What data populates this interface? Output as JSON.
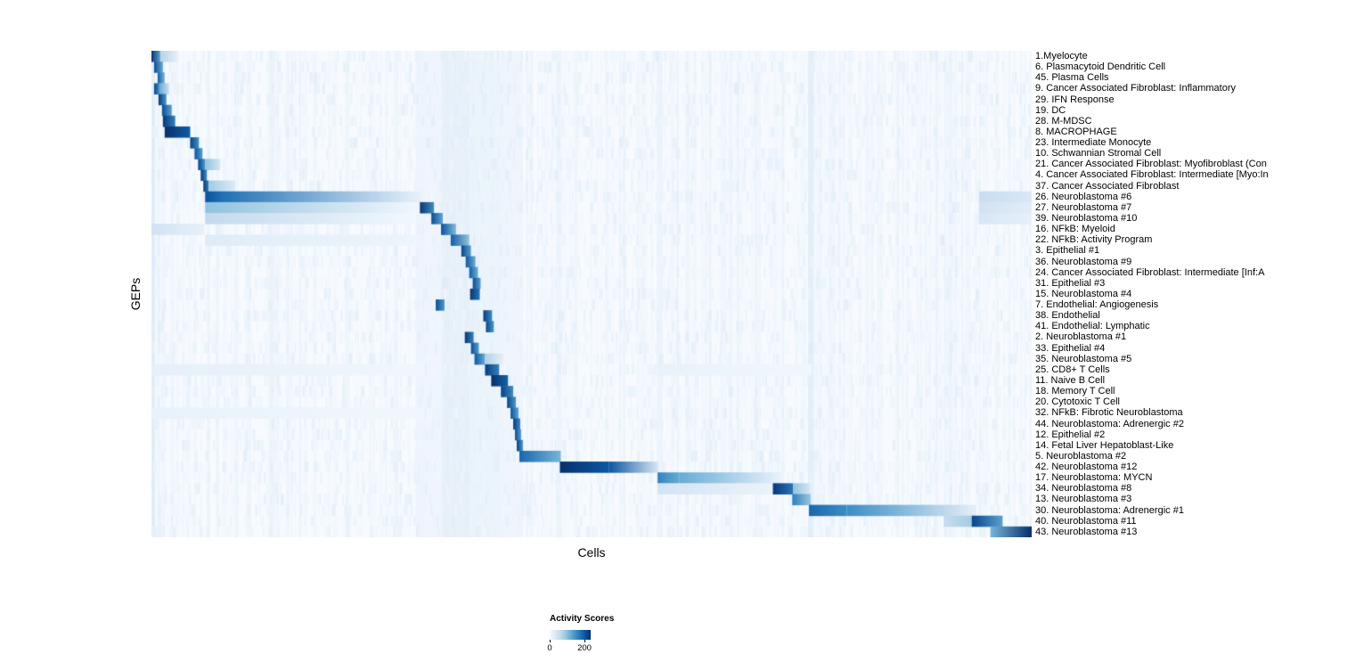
{
  "chart_data": {
    "type": "heatmap",
    "xlabel": "Cells",
    "ylabel": "GEPs",
    "legend": {
      "title": "Activity Scores",
      "tick_min": "0",
      "tick_max": "200"
    },
    "score_max": 235,
    "colors": {
      "background": "#ffffff",
      "scale_stops": [
        "#f7fbff",
        "#deebf7",
        "#c6dbef",
        "#9ecae1",
        "#6baed6",
        "#4292c6",
        "#2171b5",
        "#08519c",
        "#08306b"
      ]
    },
    "rows": [
      {
        "label": "1.Myelocyte",
        "blocks": [
          [
            0.0,
            0.01,
            230,
            130
          ],
          [
            0.01,
            0.03,
            70,
            20
          ]
        ]
      },
      {
        "label": "6. Plasmacytoid Dendritic Cell",
        "blocks": [
          [
            0.003,
            0.013,
            210,
            120
          ]
        ]
      },
      {
        "label": "45. Plasma Cells",
        "blocks": [
          [
            0.007,
            0.015,
            195,
            110
          ]
        ]
      },
      {
        "label": "9. Cancer Associated Fibroblast: Inflammatory",
        "blocks": [
          [
            0.003,
            0.009,
            215,
            150
          ],
          [
            0.009,
            0.02,
            120,
            50
          ]
        ]
      },
      {
        "label": "29. IFN Response",
        "blocks": [
          [
            0.008,
            0.017,
            225,
            140
          ]
        ]
      },
      {
        "label": "19. DC",
        "blocks": [
          [
            0.012,
            0.023,
            210,
            130
          ]
        ]
      },
      {
        "label": "28. M-MDSC",
        "blocks": [
          [
            0.013,
            0.027,
            230,
            160
          ]
        ]
      },
      {
        "label": "8. MACROPHAGE",
        "blocks": [
          [
            0.015,
            0.044,
            235,
            195
          ]
        ]
      },
      {
        "label": "23. Intermediate Monocyte",
        "blocks": [
          [
            0.044,
            0.054,
            220,
            145
          ]
        ]
      },
      {
        "label": "10. Schwannian Stromal Cell",
        "blocks": [
          [
            0.049,
            0.058,
            205,
            130
          ]
        ]
      },
      {
        "label": "21. Cancer Associated Fibroblast: Myofibroblast (Con",
        "blocks": [
          [
            0.053,
            0.061,
            215,
            140
          ],
          [
            0.061,
            0.078,
            95,
            40
          ]
        ]
      },
      {
        "label": "4. Cancer Associated Fibroblast: Intermediate [Myo:In",
        "blocks": [
          [
            0.056,
            0.063,
            225,
            150
          ]
        ]
      },
      {
        "label": "37. Cancer Associated Fibroblast",
        "blocks": [
          [
            0.059,
            0.065,
            230,
            160
          ],
          [
            0.065,
            0.095,
            85,
            30
          ]
        ]
      },
      {
        "label": "26. Neuroblastoma #6",
        "blocks": [
          [
            0.061,
            0.082,
            205,
            175
          ],
          [
            0.082,
            0.31,
            175,
            12
          ],
          [
            0.94,
            1.0,
            55,
            35
          ]
        ]
      },
      {
        "label": "27. Neuroblastoma #7",
        "blocks": [
          [
            0.061,
            0.3,
            95,
            8
          ],
          [
            0.305,
            0.321,
            230,
            150
          ],
          [
            0.94,
            1.0,
            45,
            25
          ]
        ]
      },
      {
        "label": "39. Neuroblastoma #10",
        "blocks": [
          [
            0.061,
            0.3,
            60,
            6
          ],
          [
            0.318,
            0.331,
            210,
            125
          ],
          [
            0.94,
            1.0,
            38,
            20
          ]
        ]
      },
      {
        "label": "16. NFkB: Myeloid",
        "blocks": [
          [
            0.0,
            0.06,
            45,
            18
          ],
          [
            0.329,
            0.346,
            205,
            105
          ]
        ]
      },
      {
        "label": "22. NFkB: Activity Program",
        "blocks": [
          [
            0.061,
            0.3,
            28,
            10
          ],
          [
            0.34,
            0.361,
            195,
            95
          ]
        ]
      },
      {
        "label": "3. Epithelial #1",
        "blocks": [
          [
            0.352,
            0.363,
            215,
            130
          ]
        ]
      },
      {
        "label": "36. Neuroblastoma #9",
        "blocks": [
          [
            0.357,
            0.368,
            200,
            120
          ]
        ]
      },
      {
        "label": "24. Cancer Associated Fibroblast: Intermediate [Inf:A",
        "blocks": [
          [
            0.361,
            0.371,
            195,
            115
          ]
        ]
      },
      {
        "label": "31. Epithelial #3",
        "blocks": [
          [
            0.365,
            0.374,
            210,
            130
          ]
        ]
      },
      {
        "label": "15. Neuroblastoma #4",
        "blocks": [
          [
            0.362,
            0.373,
            230,
            170
          ]
        ]
      },
      {
        "label": "7. Endothelial: Angiogenesis",
        "blocks": [
          [
            0.323,
            0.333,
            210,
            135
          ]
        ]
      },
      {
        "label": "38. Endothelial",
        "blocks": [
          [
            0.377,
            0.387,
            225,
            150
          ]
        ]
      },
      {
        "label": "41. Endothelial: Lymphatic",
        "blocks": [
          [
            0.38,
            0.389,
            215,
            140
          ]
        ]
      },
      {
        "label": "2. Neuroblastoma #1",
        "blocks": [
          [
            0.356,
            0.366,
            230,
            160
          ]
        ]
      },
      {
        "label": "33. Epithelial #4",
        "blocks": [
          [
            0.363,
            0.372,
            210,
            130
          ]
        ]
      },
      {
        "label": "35. Neuroblastoma #5",
        "blocks": [
          [
            0.367,
            0.379,
            200,
            120
          ],
          [
            0.379,
            0.4,
            75,
            20
          ]
        ]
      },
      {
        "label": "25. CD8+ T Cells",
        "blocks": [
          [
            0.0,
            0.31,
            20,
            8
          ],
          [
            0.379,
            0.395,
            225,
            160
          ],
          [
            0.575,
            0.75,
            16,
            7
          ]
        ]
      },
      {
        "label": "11. Naive B Cell",
        "blocks": [
          [
            0.386,
            0.405,
            235,
            190
          ]
        ]
      },
      {
        "label": "18. Memory T Cell",
        "blocks": [
          [
            0.397,
            0.411,
            220,
            150
          ]
        ]
      },
      {
        "label": "20. Cytotoxic T Cell",
        "blocks": [
          [
            0.404,
            0.414,
            215,
            140
          ]
        ]
      },
      {
        "label": "32. NFkB: Fibrotic Neuroblastoma",
        "blocks": [
          [
            0.0,
            0.31,
            16,
            7
          ],
          [
            0.408,
            0.417,
            205,
            125
          ]
        ]
      },
      {
        "label": "44. Neuroblastoma: Adrenergic #2",
        "blocks": [
          [
            0.411,
            0.419,
            225,
            150
          ]
        ]
      },
      {
        "label": "12. Epithelial #2",
        "blocks": [
          [
            0.413,
            0.42,
            210,
            130
          ]
        ]
      },
      {
        "label": "14. Fetal Liver Hepatoblast-Like",
        "blocks": [
          [
            0.415,
            0.422,
            220,
            140
          ]
        ]
      },
      {
        "label": "5. Neuroblastoma #2",
        "blocks": [
          [
            0.418,
            0.465,
            185,
            110
          ]
        ]
      },
      {
        "label": "42. Neuroblastoma #12",
        "blocks": [
          [
            0.464,
            0.52,
            235,
            200
          ],
          [
            0.52,
            0.576,
            200,
            35
          ]
        ]
      },
      {
        "label": "17. Neuroblastoma: MYCN",
        "blocks": [
          [
            0.575,
            0.6,
            160,
            120
          ],
          [
            0.6,
            0.716,
            120,
            15
          ]
        ]
      },
      {
        "label": "34. Neuroblastoma #8",
        "blocks": [
          [
            0.575,
            0.706,
            42,
            14
          ],
          [
            0.706,
            0.729,
            230,
            170
          ],
          [
            0.729,
            0.748,
            95,
            40
          ]
        ]
      },
      {
        "label": "13. Neuroblastoma #3",
        "blocks": [
          [
            0.728,
            0.749,
            165,
            90
          ]
        ]
      },
      {
        "label": "30. Neuroblastoma: Adrenergic #1",
        "blocks": [
          [
            0.747,
            0.79,
            185,
            150
          ],
          [
            0.79,
            0.937,
            150,
            20
          ]
        ]
      },
      {
        "label": "40. Neuroblastoma #11",
        "blocks": [
          [
            0.9,
            0.933,
            55,
            85
          ],
          [
            0.932,
            0.967,
            215,
            130
          ]
        ]
      },
      {
        "label": "43. Neuroblastoma #13",
        "blocks": [
          [
            0.953,
            1.0,
            110,
            235
          ]
        ]
      }
    ],
    "vertical_bands": [
      [
        0.0,
        0.004,
        32
      ],
      [
        0.3,
        0.33,
        12
      ],
      [
        0.33,
        0.362,
        24
      ],
      [
        0.362,
        0.396,
        17
      ],
      [
        0.396,
        0.422,
        12
      ],
      [
        0.46,
        0.466,
        16
      ],
      [
        0.574,
        0.58,
        15
      ],
      [
        0.746,
        0.752,
        28
      ],
      [
        0.905,
        0.91,
        14
      ]
    ],
    "noise": {
      "seed": 12345,
      "column_count": 320,
      "column_min": 4,
      "column_max": 22,
      "speckle_per_row": 160,
      "speckle_min": 4,
      "speckle_max": 30
    }
  }
}
